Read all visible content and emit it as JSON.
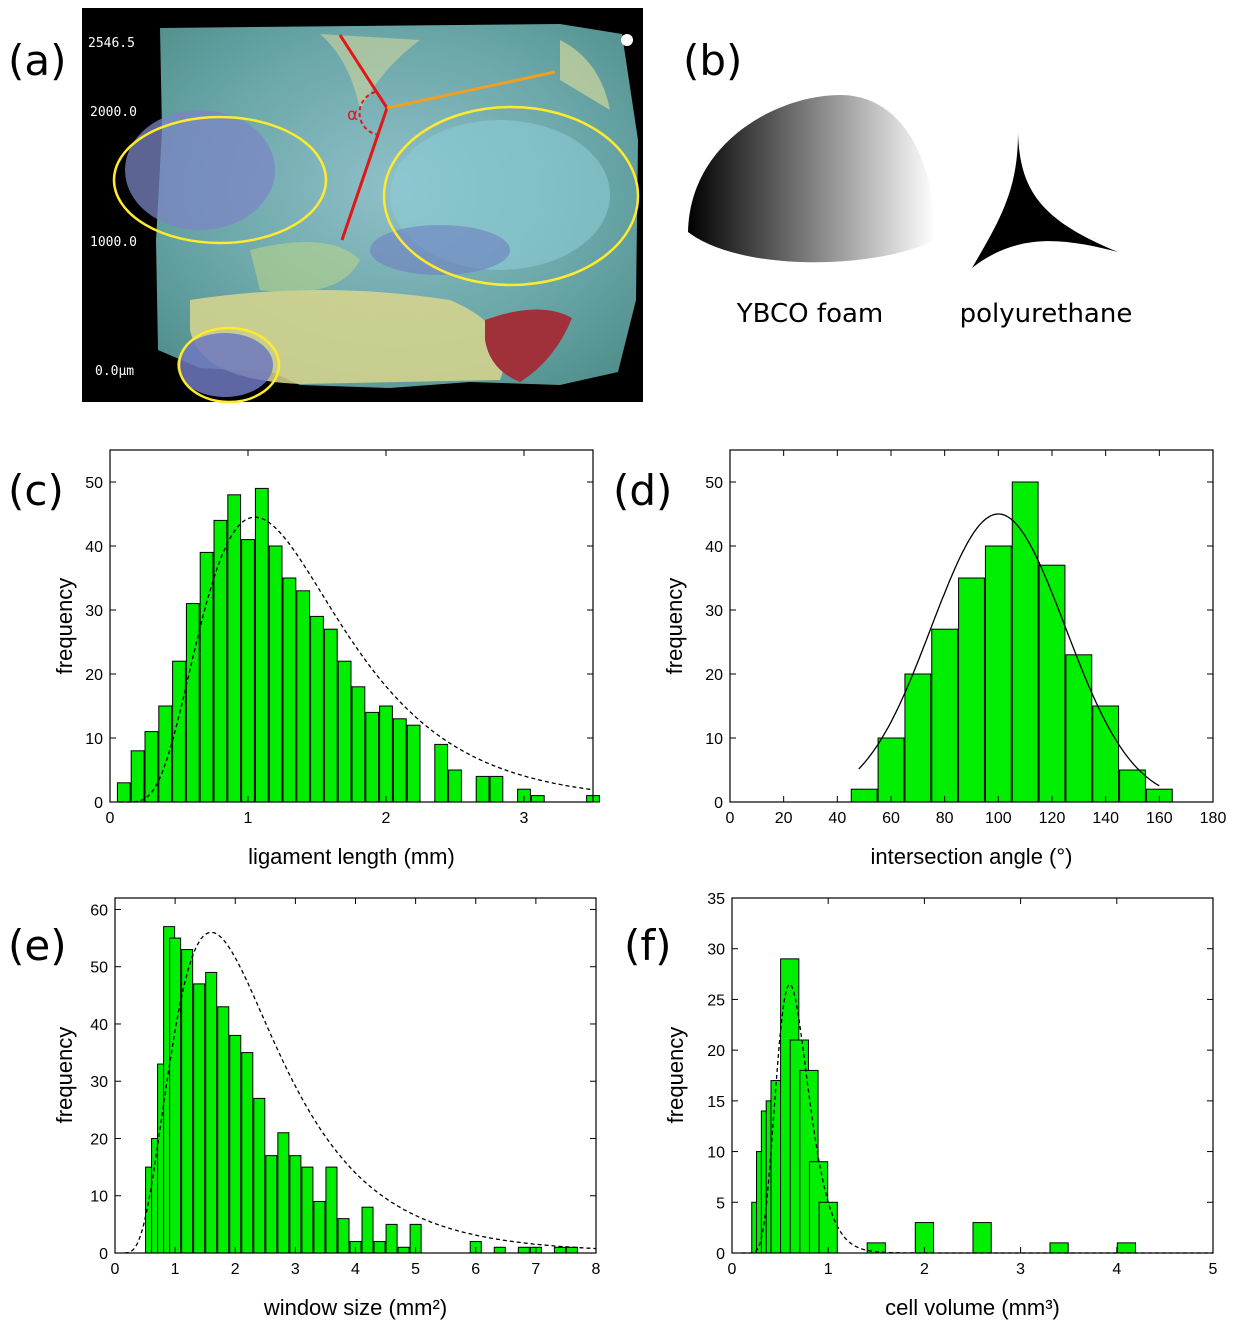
{
  "panels": {
    "a": {
      "label": "(a)",
      "scale_ticks": [
        "2546.5",
        "2000.0",
        "1000.0",
        "0.0μm"
      ],
      "angle_symbol": "α"
    },
    "b": {
      "label": "(b)",
      "captions": [
        "YBCO foam",
        "polyurethane"
      ]
    }
  },
  "chart_data": [
    {
      "id": "c",
      "label": "(c)",
      "type": "bar",
      "xlabel": "ligament length (mm)",
      "ylabel": "frequency",
      "xlim": [
        0,
        3.5
      ],
      "ylim": [
        0,
        55
      ],
      "xticks": [
        0,
        1,
        2,
        3
      ],
      "yticks": [
        0,
        10,
        20,
        30,
        40,
        50
      ],
      "bin_width": 0.1,
      "fit_style": "dashed",
      "fit": "lognormal",
      "x": [
        0.1,
        0.2,
        0.3,
        0.4,
        0.5,
        0.6,
        0.7,
        0.8,
        0.9,
        1.0,
        1.1,
        1.2,
        1.3,
        1.4,
        1.5,
        1.6,
        1.7,
        1.8,
        1.9,
        2.0,
        2.1,
        2.2,
        2.4,
        2.5,
        2.7,
        2.8,
        3.0,
        3.1,
        3.5
      ],
      "values": [
        3,
        8,
        11,
        15,
        22,
        31,
        39,
        44,
        48,
        41,
        49,
        40,
        35,
        33,
        29,
        27,
        22,
        18,
        14,
        15,
        13,
        12,
        9,
        5,
        4,
        4,
        2,
        1,
        1
      ]
    },
    {
      "id": "d",
      "label": "(d)",
      "type": "bar",
      "xlabel": "intersection angle (°)",
      "ylabel": "frequency",
      "xlim": [
        0,
        180
      ],
      "ylim": [
        0,
        55
      ],
      "xticks": [
        0,
        20,
        40,
        60,
        80,
        100,
        120,
        140,
        160,
        180
      ],
      "yticks": [
        0,
        10,
        20,
        30,
        40,
        50
      ],
      "bin_width": 10,
      "fit_style": "solid",
      "fit": "gaussian",
      "x": [
        50,
        60,
        70,
        80,
        90,
        100,
        110,
        120,
        130,
        140,
        150,
        160
      ],
      "values": [
        2,
        10,
        20,
        27,
        35,
        40,
        50,
        37,
        23,
        15,
        5,
        2
      ]
    },
    {
      "id": "e",
      "label": "(e)",
      "type": "bar",
      "xlabel": "window size (mm²)",
      "ylabel": "frequency",
      "xlim": [
        0,
        8
      ],
      "ylim": [
        0,
        62
      ],
      "xticks": [
        0,
        1,
        2,
        3,
        4,
        5,
        6,
        7,
        8
      ],
      "yticks": [
        0,
        10,
        20,
        30,
        40,
        50,
        60
      ],
      "bin_width": 0.2,
      "fit_style": "dashed",
      "fit": "lognormal",
      "x": [
        0.6,
        0.7,
        0.8,
        0.9,
        1.0,
        1.2,
        1.4,
        1.6,
        1.8,
        2.0,
        2.2,
        2.4,
        2.6,
        2.8,
        3.0,
        3.2,
        3.4,
        3.6,
        3.8,
        4.0,
        4.2,
        4.4,
        4.6,
        4.8,
        5.0,
        5.2,
        6.0,
        6.4,
        6.8,
        7.0,
        7.4,
        7.6
      ],
      "values": [
        15,
        20,
        33,
        57,
        55,
        53,
        47,
        49,
        43,
        38,
        35,
        27,
        17,
        21,
        17,
        15,
        9,
        15,
        6,
        2,
        8,
        2,
        5,
        1,
        5,
        0,
        2,
        1,
        1,
        1,
        1,
        1
      ]
    },
    {
      "id": "f",
      "label": "(f)",
      "type": "bar",
      "xlabel": "cell volume (mm³)",
      "ylabel": "frequency",
      "xlim": [
        0,
        5
      ],
      "ylim": [
        0,
        35
      ],
      "xticks": [
        0,
        1,
        2,
        3,
        4,
        5
      ],
      "yticks": [
        0,
        5,
        10,
        15,
        20,
        25,
        30,
        35
      ],
      "bin_width": 0.2,
      "fit_style": "dashed",
      "fit": "lognormal",
      "x": [
        0.3,
        0.35,
        0.4,
        0.45,
        0.5,
        0.6,
        0.7,
        0.8,
        0.9,
        1.0,
        1.5,
        2.0,
        2.6,
        3.4,
        4.1
      ],
      "values": [
        5,
        10,
        14,
        15,
        17,
        29,
        21,
        18,
        9,
        5,
        1,
        3,
        3,
        1,
        1
      ]
    }
  ]
}
